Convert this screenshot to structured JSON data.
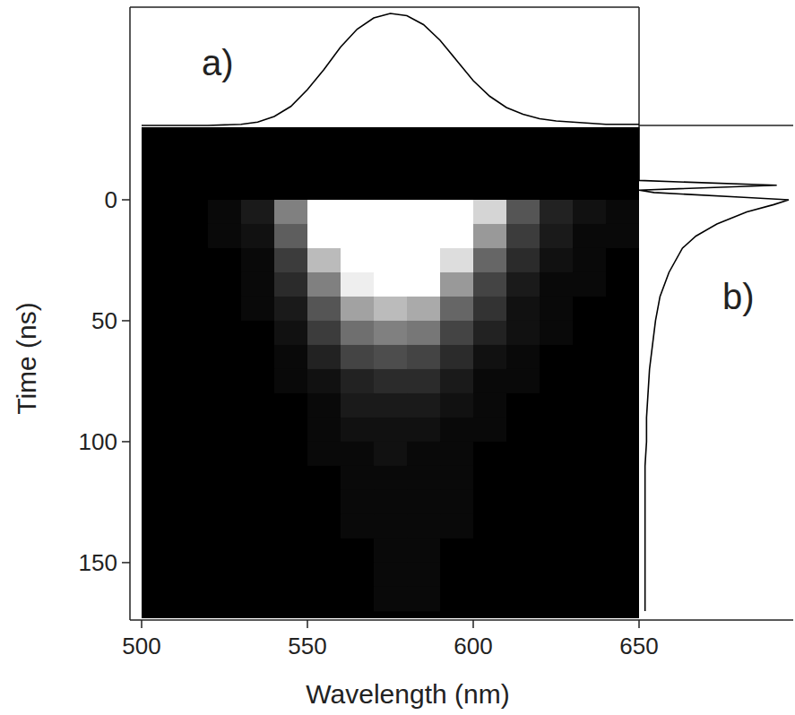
{
  "chart_data": [
    {
      "type": "heatmap",
      "xlabel": "Wavelength (nm)",
      "ylabel": "Time (ns)",
      "xlim": [
        500,
        650
      ],
      "ylim": [
        173,
        -30
      ],
      "xticks": [
        500,
        550,
        600,
        650
      ],
      "yticks": [
        0,
        50,
        100,
        150
      ],
      "x_edges": [
        500,
        510,
        520,
        530,
        540,
        550,
        560,
        570,
        580,
        590,
        600,
        610,
        620,
        630,
        640,
        650
      ],
      "y_edges": [
        -30,
        -20,
        -10,
        0,
        10,
        20,
        30,
        40,
        50,
        60,
        70,
        80,
        90,
        100,
        110,
        120,
        130,
        140,
        150,
        160,
        170
      ],
      "cells": [
        [
          0,
          0,
          0,
          0,
          0,
          0,
          0,
          0,
          0,
          0,
          0,
          0,
          0,
          0,
          0
        ],
        [
          0,
          0,
          0,
          0,
          0,
          0,
          0,
          0,
          0,
          0,
          0,
          0,
          0,
          0,
          0
        ],
        [
          0,
          0,
          0,
          0,
          0,
          0,
          0,
          0,
          0,
          0,
          0,
          0,
          0,
          0,
          0
        ],
        [
          0,
          0,
          1,
          3,
          15,
          45,
          85,
          100,
          90,
          55,
          25,
          10,
          4,
          2,
          1
        ],
        [
          0,
          0,
          1,
          2,
          11,
          32,
          60,
          70,
          63,
          39,
          18,
          7,
          3,
          1,
          1
        ],
        [
          0,
          0,
          0,
          1,
          7,
          22,
          41,
          48,
          43,
          26,
          12,
          5,
          2,
          1,
          0
        ],
        [
          0,
          0,
          0,
          1,
          5,
          15,
          28,
          33,
          30,
          18,
          8,
          3,
          1,
          1,
          0
        ],
        [
          0,
          0,
          0,
          1,
          3,
          10,
          19,
          22,
          20,
          12,
          6,
          2,
          1,
          0,
          0
        ],
        [
          0,
          0,
          0,
          0,
          2,
          7,
          13,
          15,
          14,
          8,
          4,
          2,
          1,
          0,
          0
        ],
        [
          0,
          0,
          0,
          0,
          1,
          4,
          8,
          9,
          8,
          5,
          2,
          1,
          0,
          0,
          0
        ],
        [
          0,
          0,
          0,
          0,
          1,
          2,
          4,
          5,
          5,
          3,
          1,
          1,
          0,
          0,
          0
        ],
        [
          0,
          0,
          0,
          0,
          0,
          1,
          3,
          3,
          3,
          2,
          1,
          0,
          0,
          0,
          0
        ],
        [
          0,
          0,
          0,
          0,
          0,
          1,
          2,
          2,
          2,
          1,
          1,
          0,
          0,
          0,
          0
        ],
        [
          0,
          0,
          0,
          0,
          0,
          1,
          1,
          2,
          1,
          1,
          0,
          0,
          0,
          0,
          0
        ],
        [
          0,
          0,
          0,
          0,
          0,
          0,
          1,
          1,
          1,
          1,
          0,
          0,
          0,
          0,
          0
        ],
        [
          0,
          0,
          0,
          0,
          0,
          0,
          1,
          1,
          1,
          1,
          0,
          0,
          0,
          0,
          0
        ],
        [
          0,
          0,
          0,
          0,
          0,
          0,
          1,
          1,
          1,
          1,
          0,
          0,
          0,
          0,
          0
        ],
        [
          0,
          0,
          0,
          0,
          0,
          0,
          0,
          1,
          1,
          0,
          0,
          0,
          0,
          0,
          0
        ],
        [
          0,
          0,
          0,
          0,
          0,
          0,
          0,
          1,
          1,
          0,
          0,
          0,
          0,
          0,
          0
        ],
        [
          0,
          0,
          0,
          0,
          0,
          0,
          0,
          1,
          1,
          0,
          0,
          0,
          0,
          0,
          0
        ]
      ],
      "zlim": [
        0,
        30
      ],
      "color": "#ffffff"
    },
    {
      "type": "line",
      "title": "a)",
      "x": [
        500,
        505,
        510,
        515,
        520,
        525,
        530,
        535,
        540,
        545,
        550,
        555,
        560,
        565,
        570,
        575,
        580,
        585,
        590,
        595,
        600,
        605,
        610,
        615,
        620,
        625,
        630,
        635,
        640,
        645,
        650
      ],
      "values": [
        0,
        0,
        0,
        0,
        0,
        0.5,
        1,
        3,
        8,
        17,
        32,
        50,
        70,
        86,
        96,
        100,
        98,
        90,
        76,
        58,
        40,
        26,
        16,
        10,
        6,
        4,
        3,
        2,
        1,
        1,
        1
      ],
      "xlim": [
        500,
        650
      ],
      "ylim": [
        0,
        100
      ],
      "tick_labels": false,
      "color": "#000000"
    },
    {
      "type": "line",
      "title": "b)",
      "orientation": "horizontal",
      "x": [
        -30,
        -8,
        -6,
        -4,
        -3,
        -1,
        0,
        2,
        5,
        10,
        15,
        20,
        30,
        40,
        50,
        60,
        70,
        80,
        90,
        100,
        110,
        120,
        130,
        140,
        150,
        160,
        170
      ],
      "values": [
        0,
        0,
        92,
        0,
        10,
        70,
        100,
        90,
        72,
        52,
        38,
        29,
        20,
        14,
        11,
        9,
        7,
        6,
        5,
        5,
        4,
        4,
        4,
        4,
        4,
        4,
        4
      ],
      "xlim": [
        173,
        -30
      ],
      "ylim": [
        0,
        100
      ],
      "tick_labels": false,
      "color": "#000000"
    }
  ]
}
